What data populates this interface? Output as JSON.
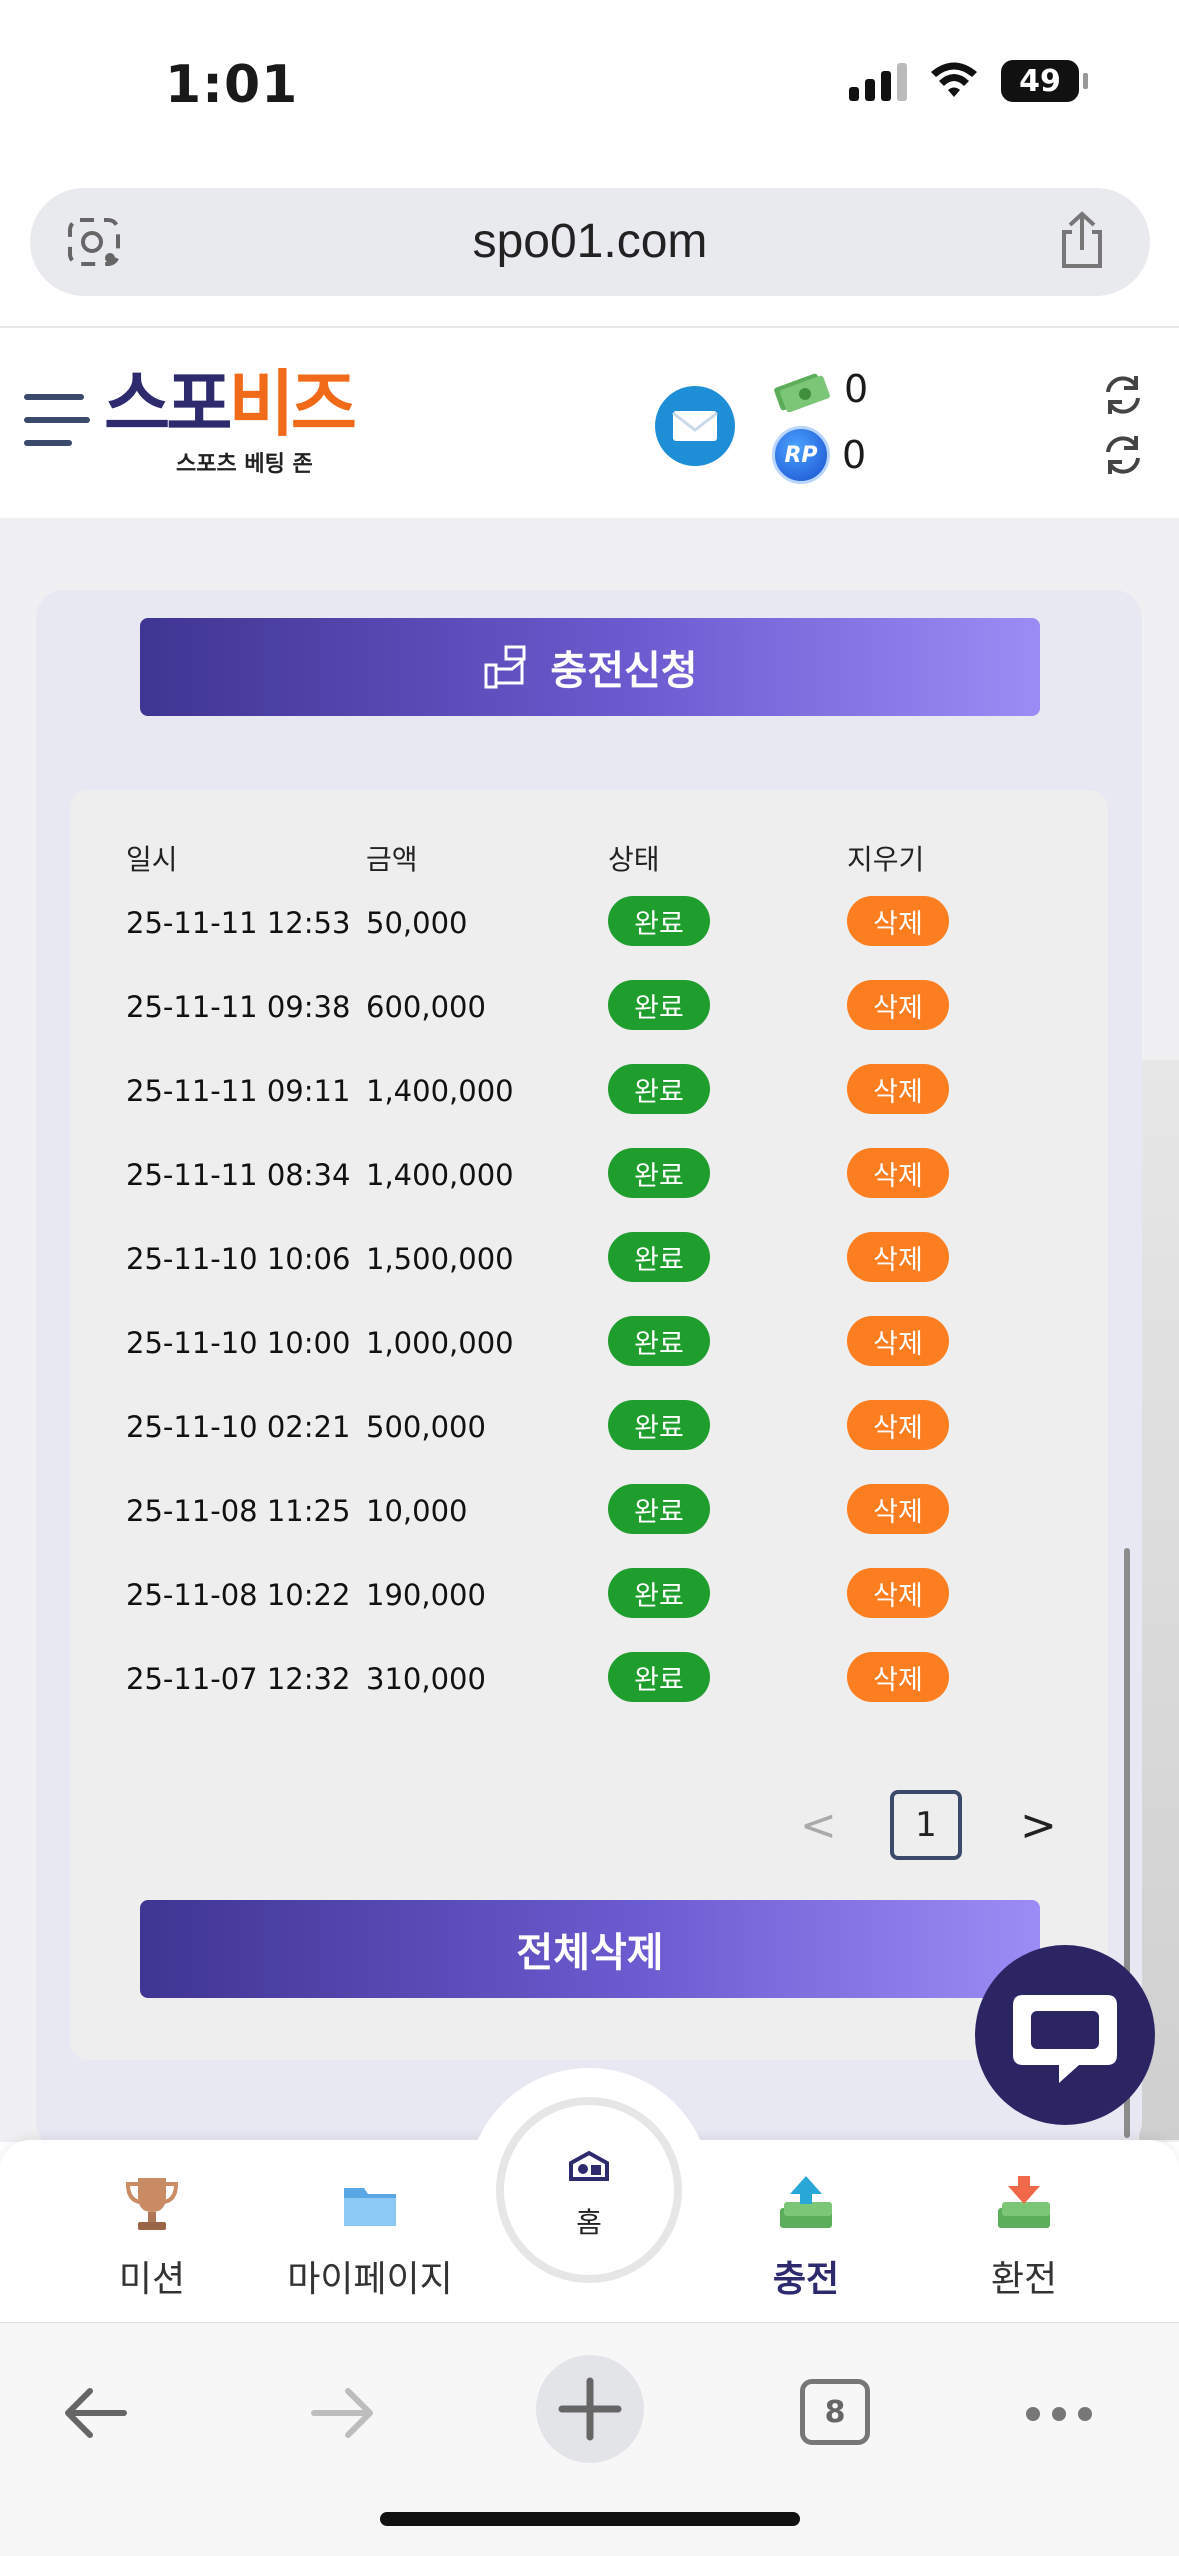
{
  "status_bar": {
    "time": "1:01",
    "battery": "49"
  },
  "browser": {
    "url": "spo01.com",
    "tab_count": "8"
  },
  "header": {
    "logo_part1": "스포",
    "logo_part2": "비즈",
    "logo_subtitle": "스포츠 베팅 존",
    "cash_balance": "0",
    "point_balance": "0",
    "point_icon_text": "RP"
  },
  "page": {
    "deposit_request_label": "충전신청",
    "delete_all_label": "전체삭제",
    "columns": [
      "일시",
      "금액",
      "상태",
      "지우기"
    ],
    "rows": [
      {
        "date": "25-11-11 12:53",
        "amount": "50,000",
        "status": "완료",
        "action": "삭제"
      },
      {
        "date": "25-11-11 09:38",
        "amount": "600,000",
        "status": "완료",
        "action": "삭제"
      },
      {
        "date": "25-11-11 09:11",
        "amount": "1,400,000",
        "status": "완료",
        "action": "삭제"
      },
      {
        "date": "25-11-11 08:34",
        "amount": "1,400,000",
        "status": "완료",
        "action": "삭제"
      },
      {
        "date": "25-11-10 10:06",
        "amount": "1,500,000",
        "status": "완료",
        "action": "삭제"
      },
      {
        "date": "25-11-10 10:00",
        "amount": "1,000,000",
        "status": "완료",
        "action": "삭제"
      },
      {
        "date": "25-11-10 02:21",
        "amount": "500,000",
        "status": "완료",
        "action": "삭제"
      },
      {
        "date": "25-11-08 11:25",
        "amount": "10,000",
        "status": "완료",
        "action": "삭제"
      },
      {
        "date": "25-11-08 10:22",
        "amount": "190,000",
        "status": "완료",
        "action": "삭제"
      },
      {
        "date": "25-11-07 12:32",
        "amount": "310,000",
        "status": "완료",
        "action": "삭제"
      }
    ],
    "pagination": {
      "prev": "<",
      "current": "1",
      "next": ">"
    }
  },
  "bottom_nav": {
    "mission": "미션",
    "mypage": "마이페이지",
    "home": "홈",
    "deposit": "충전",
    "withdraw": "환전"
  },
  "colors": {
    "brand_navy": "#2d2a6e",
    "brand_orange": "#f06a1a",
    "status_green": "#1f9e2e",
    "delete_orange": "#fd7e20"
  }
}
